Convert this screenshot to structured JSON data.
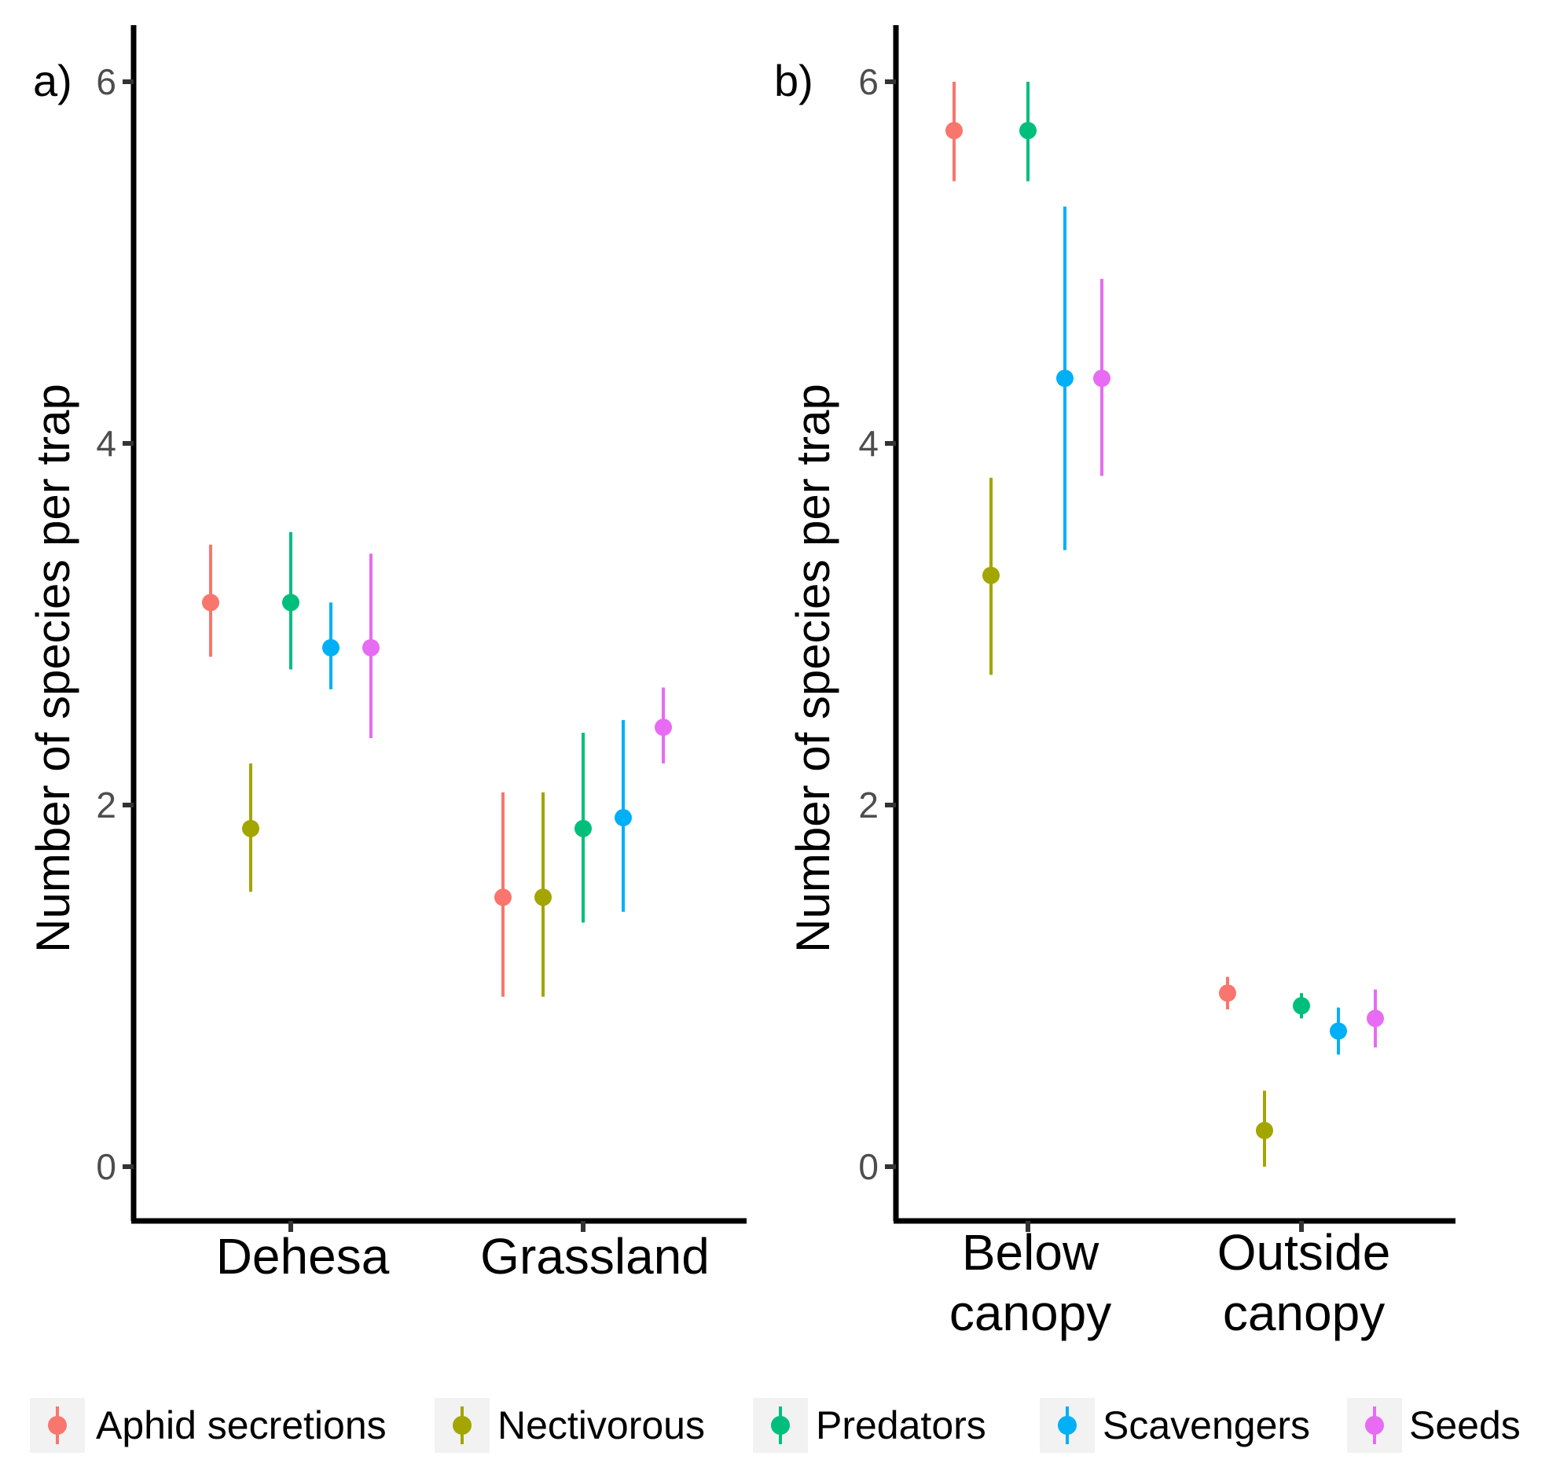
{
  "chart_data": [
    {
      "type": "errorbar",
      "panel_tag": "a)",
      "ylabel": "Number of species per trap",
      "ylim": [
        -0.3,
        6.3
      ],
      "yticks": [
        0,
        2,
        4,
        6
      ],
      "categories": [
        [
          "Dehesa"
        ],
        [
          "Grassland"
        ]
      ],
      "series": [
        {
          "name": "Aphid secretions",
          "values": [
            [
              3.12,
              2.82,
              3.44
            ],
            [
              1.49,
              0.94,
              2.07
            ]
          ]
        },
        {
          "name": "Nectivorous",
          "values": [
            [
              1.87,
              1.52,
              2.23
            ],
            [
              1.49,
              0.94,
              2.07
            ]
          ]
        },
        {
          "name": "Predators",
          "values": [
            [
              3.12,
              2.75,
              3.51
            ],
            [
              1.87,
              1.35,
              2.4
            ]
          ]
        },
        {
          "name": "Scavengers",
          "values": [
            [
              2.87,
              2.64,
              3.12
            ],
            [
              1.93,
              1.41,
              2.47
            ]
          ]
        },
        {
          "name": "Seeds",
          "values": [
            [
              2.87,
              2.37,
              3.39
            ],
            [
              2.43,
              2.23,
              2.65
            ]
          ]
        }
      ]
    },
    {
      "type": "errorbar",
      "panel_tag": "b)",
      "ylabel": "Number of species per trap",
      "ylim": [
        -0.3,
        6.3
      ],
      "yticks": [
        0,
        2,
        4,
        6
      ],
      "categories": [
        [
          "Below",
          "canopy"
        ],
        [
          "Outside",
          "canopy"
        ]
      ],
      "series": [
        {
          "name": "Aphid secretions",
          "values": [
            [
              5.73,
              5.45,
              6.0
            ],
            [
              0.96,
              0.87,
              1.05
            ]
          ]
        },
        {
          "name": "Nectivorous",
          "values": [
            [
              3.27,
              2.72,
              3.81
            ],
            [
              0.2,
              0.0,
              0.42
            ]
          ]
        },
        {
          "name": "Predators",
          "values": [
            [
              5.73,
              5.45,
              6.0
            ],
            [
              0.89,
              0.82,
              0.96
            ]
          ]
        },
        {
          "name": "Scavengers",
          "values": [
            [
              4.36,
              3.41,
              5.31
            ],
            [
              0.75,
              0.62,
              0.88
            ]
          ]
        },
        {
          "name": "Seeds",
          "values": [
            [
              4.36,
              3.82,
              4.91
            ],
            [
              0.82,
              0.66,
              0.98
            ]
          ]
        }
      ]
    }
  ],
  "legend": {
    "position": "bottom",
    "items": [
      {
        "label": "Aphid secretions",
        "color": "#F8766D"
      },
      {
        "label": "Nectivorous",
        "color": "#A3A500"
      },
      {
        "label": "Predators",
        "color": "#00BF7D"
      },
      {
        "label": "Scavengers",
        "color": "#00B0F6"
      },
      {
        "label": "Seeds",
        "color": "#E76BF3"
      }
    ]
  }
}
